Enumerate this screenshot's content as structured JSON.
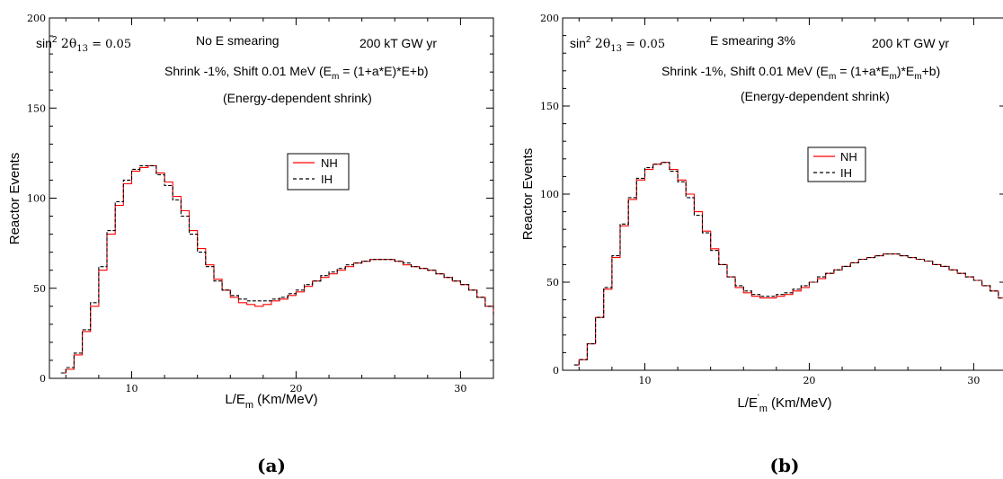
{
  "chart_data": [
    {
      "type": "line",
      "caption": "(a)",
      "annotations": {
        "param_prefix": "sin",
        "param_sup": "2",
        "param_theta": " 2θ",
        "param_sub": "13",
        "param_value": " = 0.05",
        "smearing": "No E smearing",
        "exposure": "200 kT GW yr",
        "shrink_text": "Shrink -1%,  Shift 0.01 MeV (E",
        "shrink_sub": "m",
        "shrink_rest": " = (1+a*E)*E+b)",
        "shrink_note": "(Energy-dependent shrink)"
      },
      "xlabel": {
        "main": "L/E",
        "sub": "m",
        "prime": "",
        "unit": " (Km/MeV)"
      },
      "ylabel": "Reactor Events",
      "xlim": [
        5,
        32
      ],
      "ylim": [
        0,
        200
      ],
      "xticks": [
        "10",
        "20",
        "30"
      ],
      "yticks": [
        "0",
        "50",
        "100",
        "150",
        "200"
      ],
      "legend": {
        "position": "center-top",
        "entries": [
          "NH",
          "IH"
        ]
      },
      "series": [
        {
          "name": "NH",
          "color": "#ff0000",
          "dash": "solid",
          "points": [
            [
              5.7,
              3
            ],
            [
              6,
              5
            ],
            [
              6.5,
              13
            ],
            [
              7,
              26
            ],
            [
              7.5,
              40
            ],
            [
              8,
              60
            ],
            [
              8.5,
              80
            ],
            [
              9,
              96
            ],
            [
              9.5,
              108
            ],
            [
              10,
              115
            ],
            [
              10.5,
              117
            ],
            [
              11,
              118
            ],
            [
              11.5,
              114
            ],
            [
              12,
              109
            ],
            [
              12.5,
              101
            ],
            [
              13,
              93
            ],
            [
              13.5,
              82
            ],
            [
              14,
              72
            ],
            [
              14.5,
              63
            ],
            [
              15,
              55
            ],
            [
              15.5,
              49
            ],
            [
              16,
              45
            ],
            [
              16.5,
              42
            ],
            [
              17,
              41
            ],
            [
              17.5,
              40
            ],
            [
              18,
              41
            ],
            [
              18.5,
              43
            ],
            [
              19,
              44
            ],
            [
              19.5,
              46
            ],
            [
              20,
              48
            ],
            [
              20.5,
              51
            ],
            [
              21,
              54
            ],
            [
              21.5,
              56
            ],
            [
              22,
              58
            ],
            [
              22.5,
              60
            ],
            [
              23,
              62
            ],
            [
              23.5,
              64
            ],
            [
              24,
              65
            ],
            [
              24.5,
              66
            ],
            [
              25,
              66
            ],
            [
              25.5,
              66
            ],
            [
              26,
              65
            ],
            [
              26.5,
              63
            ],
            [
              27,
              62
            ],
            [
              27.5,
              61
            ],
            [
              28,
              60
            ],
            [
              28.5,
              58
            ],
            [
              29,
              56
            ],
            [
              29.5,
              54
            ],
            [
              30,
              52
            ],
            [
              30.5,
              49
            ],
            [
              31,
              45
            ],
            [
              31.5,
              40
            ],
            [
              32,
              35
            ]
          ]
        },
        {
          "name": "IH",
          "color": "#000000",
          "dash": "dashed",
          "points": [
            [
              5.7,
              3
            ],
            [
              6,
              6
            ],
            [
              6.5,
              14
            ],
            [
              7,
              27
            ],
            [
              7.5,
              42
            ],
            [
              8,
              62
            ],
            [
              8.5,
              82
            ],
            [
              9,
              98
            ],
            [
              9.5,
              110
            ],
            [
              10,
              116
            ],
            [
              10.5,
              118
            ],
            [
              11,
              118
            ],
            [
              11.5,
              113
            ],
            [
              12,
              107
            ],
            [
              12.5,
              99
            ],
            [
              13,
              90
            ],
            [
              13.5,
              80
            ],
            [
              14,
              70
            ],
            [
              14.5,
              62
            ],
            [
              15,
              54
            ],
            [
              15.5,
              49
            ],
            [
              16,
              46
            ],
            [
              16.5,
              44
            ],
            [
              17,
              43
            ],
            [
              17.5,
              43
            ],
            [
              18,
              43
            ],
            [
              18.5,
              44
            ],
            [
              19,
              45
            ],
            [
              19.5,
              47
            ],
            [
              20,
              49
            ],
            [
              20.5,
              52
            ],
            [
              21,
              54
            ],
            [
              21.5,
              57
            ],
            [
              22,
              59
            ],
            [
              22.5,
              61
            ],
            [
              23,
              63
            ],
            [
              23.5,
              64
            ],
            [
              24,
              65
            ],
            [
              24.5,
              66
            ],
            [
              25,
              66
            ],
            [
              25.5,
              66
            ],
            [
              26,
              65
            ],
            [
              26.5,
              64
            ],
            [
              27,
              62
            ],
            [
              27.5,
              61
            ],
            [
              28,
              60
            ],
            [
              28.5,
              58
            ],
            [
              29,
              56
            ],
            [
              29.5,
              54
            ],
            [
              30,
              52
            ],
            [
              30.5,
              49
            ],
            [
              31,
              45
            ],
            [
              31.5,
              40
            ],
            [
              32,
              35
            ]
          ]
        }
      ]
    },
    {
      "type": "line",
      "caption": "(b)",
      "annotations": {
        "param_prefix": "sin",
        "param_sup": "2",
        "param_theta": " 2θ",
        "param_sub": "13",
        "param_value": " = 0.05",
        "smearing": "E smearing 3%",
        "exposure": "200 kT GW yr",
        "shrink_text": "Shrink -1%,  Shift 0.01 MeV (E",
        "shrink_sub": "m",
        "shrink_rest": " = (1+a*E",
        "shrink_sub2": "m",
        "shrink_rest2": ")*E",
        "shrink_sub3": "m",
        "shrink_rest3": "+b)",
        "shrink_note": "(Energy-dependent shrink)"
      },
      "xlabel": {
        "main": "L/E",
        "sub": "m",
        "prime": "'",
        "unit": " (Km/MeV)"
      },
      "ylabel": "Reactor Events",
      "xlim": [
        5,
        32
      ],
      "ylim": [
        0,
        200
      ],
      "xticks": [
        "10",
        "20",
        "30"
      ],
      "yticks": [
        "0",
        "50",
        "100",
        "150",
        "200"
      ],
      "legend": {
        "position": "center-top",
        "entries": [
          "NH",
          "IH"
        ]
      },
      "series": [
        {
          "name": "NH",
          "color": "#ff0000",
          "dash": "solid",
          "points": [
            [
              5.7,
              3
            ],
            [
              6,
              6
            ],
            [
              6.5,
              15
            ],
            [
              7,
              30
            ],
            [
              7.5,
              46
            ],
            [
              8,
              64
            ],
            [
              8.5,
              82
            ],
            [
              9,
              97
            ],
            [
              9.5,
              108
            ],
            [
              10,
              114
            ],
            [
              10.5,
              117
            ],
            [
              11,
              118
            ],
            [
              11.5,
              114
            ],
            [
              12,
              108
            ],
            [
              12.5,
              100
            ],
            [
              13,
              90
            ],
            [
              13.5,
              79
            ],
            [
              14,
              69
            ],
            [
              14.5,
              60
            ],
            [
              15,
              53
            ],
            [
              15.5,
              47
            ],
            [
              16,
              44
            ],
            [
              16.5,
              42
            ],
            [
              17,
              41
            ],
            [
              17.5,
              41
            ],
            [
              18,
              42
            ],
            [
              18.5,
              43
            ],
            [
              19,
              45
            ],
            [
              19.5,
              47
            ],
            [
              20,
              50
            ],
            [
              20.5,
              52
            ],
            [
              21,
              55
            ],
            [
              21.5,
              57
            ],
            [
              22,
              59
            ],
            [
              22.5,
              61
            ],
            [
              23,
              63
            ],
            [
              23.5,
              64
            ],
            [
              24,
              65
            ],
            [
              24.5,
              66
            ],
            [
              25,
              66
            ],
            [
              25.5,
              65
            ],
            [
              26,
              64
            ],
            [
              26.5,
              63
            ],
            [
              27,
              62
            ],
            [
              27.5,
              60
            ],
            [
              28,
              59
            ],
            [
              28.5,
              57
            ],
            [
              29,
              55
            ],
            [
              29.5,
              53
            ],
            [
              30,
              51
            ],
            [
              30.5,
              48
            ],
            [
              31,
              45
            ],
            [
              31.5,
              41
            ],
            [
              32,
              37
            ]
          ]
        },
        {
          "name": "IH",
          "color": "#000000",
          "dash": "dashed",
          "points": [
            [
              5.7,
              3
            ],
            [
              6,
              6
            ],
            [
              6.5,
              15
            ],
            [
              7,
              30
            ],
            [
              7.5,
              47
            ],
            [
              8,
              65
            ],
            [
              8.5,
              83
            ],
            [
              9,
              98
            ],
            [
              9.5,
              109
            ],
            [
              10,
              115
            ],
            [
              10.5,
              117
            ],
            [
              11,
              118
            ],
            [
              11.5,
              113
            ],
            [
              12,
              107
            ],
            [
              12.5,
              98
            ],
            [
              13,
              88
            ],
            [
              13.5,
              78
            ],
            [
              14,
              68
            ],
            [
              14.5,
              60
            ],
            [
              15,
              53
            ],
            [
              15.5,
              48
            ],
            [
              16,
              45
            ],
            [
              16.5,
              43
            ],
            [
              17,
              42
            ],
            [
              17.5,
              42
            ],
            [
              18,
              43
            ],
            [
              18.5,
              44
            ],
            [
              19,
              46
            ],
            [
              19.5,
              48
            ],
            [
              20,
              50
            ],
            [
              20.5,
              53
            ],
            [
              21,
              55
            ],
            [
              21.5,
              57
            ],
            [
              22,
              59
            ],
            [
              22.5,
              61
            ],
            [
              23,
              63
            ],
            [
              23.5,
              64
            ],
            [
              24,
              65
            ],
            [
              24.5,
              66
            ],
            [
              25,
              66
            ],
            [
              25.5,
              65
            ],
            [
              26,
              64
            ],
            [
              26.5,
              63
            ],
            [
              27,
              62
            ],
            [
              27.5,
              60
            ],
            [
              28,
              59
            ],
            [
              28.5,
              57
            ],
            [
              29,
              55
            ],
            [
              29.5,
              53
            ],
            [
              30,
              51
            ],
            [
              30.5,
              48
            ],
            [
              31,
              45
            ],
            [
              31.5,
              41
            ],
            [
              32,
              37
            ]
          ]
        }
      ]
    }
  ]
}
